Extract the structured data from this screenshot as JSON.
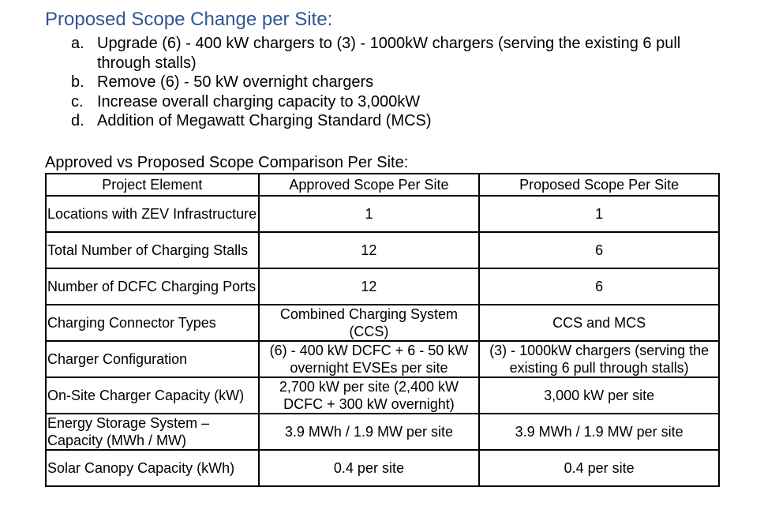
{
  "heading": "Proposed Scope Change per Site:",
  "scope_changes": [
    {
      "marker": "a.",
      "text": "Upgrade (6) - 400 kW chargers to (3) - 1000kW chargers (serving the existing 6 pull through stalls)"
    },
    {
      "marker": "b.",
      "text": "Remove (6) - 50 kW overnight chargers"
    },
    {
      "marker": "c.",
      "text": "Increase overall charging capacity to 3,000kW"
    },
    {
      "marker": "d.",
      "text": "Addition of Megawatt Charging Standard (MCS)"
    }
  ],
  "table_caption": "Approved vs Proposed Scope Comparison Per Site:",
  "table": {
    "headers": [
      "Project Element",
      "Approved Scope Per Site",
      "Proposed Scope Per Site"
    ],
    "rows": [
      [
        "Locations with ZEV Infrastructure",
        "1",
        "1"
      ],
      [
        "Total Number of Charging Stalls",
        "12",
        "6"
      ],
      [
        "Number of DCFC Charging Ports",
        "12",
        "6"
      ],
      [
        "Charging Connector Types",
        "Combined Charging System (CCS)",
        "CCS and MCS"
      ],
      [
        "Charger Configuration",
        "(6) - 400 kW DCFC + 6 - 50 kW overnight EVSEs per site",
        "(3) - 1000kW chargers (serving the existing 6 pull through stalls)"
      ],
      [
        "On-Site Charger Capacity (kW)",
        "2,700 kW per site (2,400 kW DCFC + 300 kW overnight)",
        "3,000 kW per site"
      ],
      [
        "Energy Storage System – Capacity (MWh / MW)",
        "3.9 MWh / 1.9 MW per site",
        "3.9 MWh / 1.9 MW per site"
      ],
      [
        "Solar Canopy Capacity (kWh)",
        "0.4 per site",
        "0.4 per site"
      ]
    ]
  },
  "colors": {
    "heading": "#2f5597",
    "text": "#000000",
    "border": "#000000"
  }
}
